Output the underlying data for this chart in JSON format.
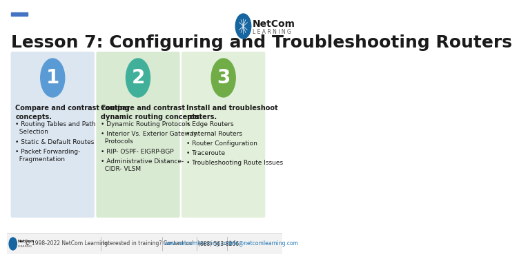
{
  "title": "Lesson 7: Configuring and Troubleshooting Routers",
  "title_fontsize": 18,
  "title_color": "#1a1a1a",
  "background_color": "#ffffff",
  "top_bar_color": "#4472c4",
  "cards": [
    {
      "number": "1",
      "circle_color": "#5b9bd5",
      "bg_color": "#dce6f1",
      "header": "Compare and contrast routing\nconcepts.",
      "bullets": [
        "Routing Tables and Path\n  Selection",
        "Static & Default Routes",
        "Packet Forwarding-\n  Fragmentation"
      ]
    },
    {
      "number": "2",
      "circle_color": "#40b09a",
      "bg_color": "#d9ead3",
      "header": "Compare and contrast\ndynamic routing concepts.",
      "bullets": [
        "Dynamic Routing Protocols",
        "Interior Vs. Exterior Gateway\n  Protocols",
        "RIP- OSPF- EIGRP-BGP",
        "Administrative Distance-\n  CIDR- VLSM"
      ]
    },
    {
      "number": "3",
      "circle_color": "#70ad47",
      "bg_color": "#e2efda",
      "header": "Install and troubleshoot\nrouters.",
      "bullets": [
        "Edge Routers",
        "Internal Routers",
        "Router Configuration",
        "Traceroute",
        "Troubleshooting Route Issues"
      ]
    }
  ],
  "circle_colors": [
    "#5b9bd5",
    "#40b09a",
    "#70ad47"
  ],
  "card_bg_colors": [
    "#dce6f1",
    "#d9ead3",
    "#e2efda"
  ],
  "footer_copyright": "© 1998-2022 NetCom Learning",
  "footer_contact": "Interested in training? Contact us!",
  "footer_url": "www.netcomlearning.com",
  "footer_phone": "(888) 563-8266",
  "footer_email": "info@netcomlearning.com",
  "footer_bg": "#f2f2f2",
  "footer_color": "#404040",
  "footer_link_color": "#1f77b4"
}
